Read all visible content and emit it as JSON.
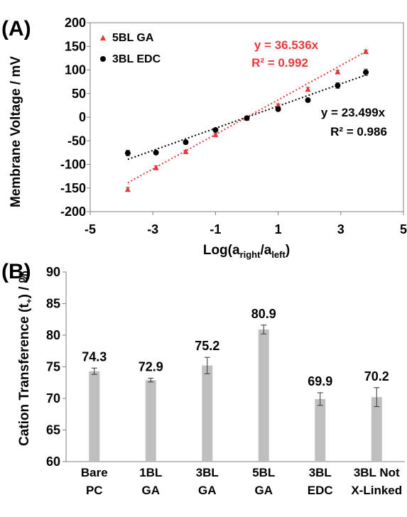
{
  "chart_data": [
    {
      "type": "scatter",
      "panel_label": "(A)",
      "xlabel_main": "Log(a",
      "xlabel_sub1": "right",
      "xlabel_mid": "/a",
      "xlabel_sub2": "left",
      "xlabel_end": ")",
      "ylabel": "Membrane Voltage / mV",
      "xlim": [
        -5,
        5
      ],
      "ylim": [
        -200,
        200
      ],
      "xticks": [
        "-5",
        "-3",
        "-1",
        "1",
        "3",
        "5"
      ],
      "yticks": [
        "200",
        "150",
        "100",
        "50",
        "0",
        "-50",
        "-100",
        "-150",
        "-200"
      ],
      "legend_position": "top-left",
      "series": [
        {
          "name": "5BL GA",
          "color": "#e8383d",
          "marker": "triangle",
          "x": [
            -3.8,
            -2.9,
            -1.95,
            -1.0,
            0.0,
            1.0,
            1.95,
            2.9,
            3.8
          ],
          "y": [
            -153,
            -107,
            -73,
            -37,
            -2,
            25,
            59,
            96,
            139
          ],
          "err": [
            4,
            4,
            3,
            3,
            2,
            3,
            4,
            3,
            3
          ],
          "fit": {
            "slope": 36.536,
            "equation": "y = 36.536x",
            "r2": "R² = 0.992"
          }
        },
        {
          "name": "3BL EDC",
          "color": "#000000",
          "marker": "circle",
          "x": [
            -3.8,
            -2.9,
            -1.95,
            -1.0,
            0.0,
            1.0,
            1.95,
            2.9,
            3.8
          ],
          "y": [
            -76,
            -75,
            -53,
            -27,
            -2,
            17,
            36,
            67,
            95
          ],
          "err": [
            6,
            3,
            3,
            3,
            2,
            4,
            3,
            6,
            7
          ],
          "fit": {
            "slope": 23.499,
            "equation": "y = 23.499x",
            "r2": "R² = 0.986"
          }
        }
      ]
    },
    {
      "type": "bar",
      "panel_label": "(B)",
      "ylabel_main": "Cation Transference (t",
      "ylabel_sub": "+",
      "ylabel_end": ") / %",
      "ylim": [
        60,
        90
      ],
      "yticks": [
        "90",
        "85",
        "80",
        "75",
        "70",
        "65",
        "60"
      ],
      "bar_color": "#bfbfbf",
      "categories": [
        [
          "Bare",
          "PC"
        ],
        [
          "1BL",
          "GA"
        ],
        [
          "3BL",
          "GA"
        ],
        [
          "5BL",
          "GA"
        ],
        [
          "3BL",
          "EDC"
        ],
        [
          "3BL Not",
          "X-Linked"
        ]
      ],
      "values": [
        74.3,
        72.9,
        75.2,
        80.9,
        69.9,
        70.2
      ],
      "labels": [
        "74.3",
        "72.9",
        "75.2",
        "80.9",
        "69.9",
        "70.2"
      ],
      "err": [
        0.5,
        0.3,
        1.3,
        0.7,
        1.0,
        1.5
      ]
    }
  ]
}
